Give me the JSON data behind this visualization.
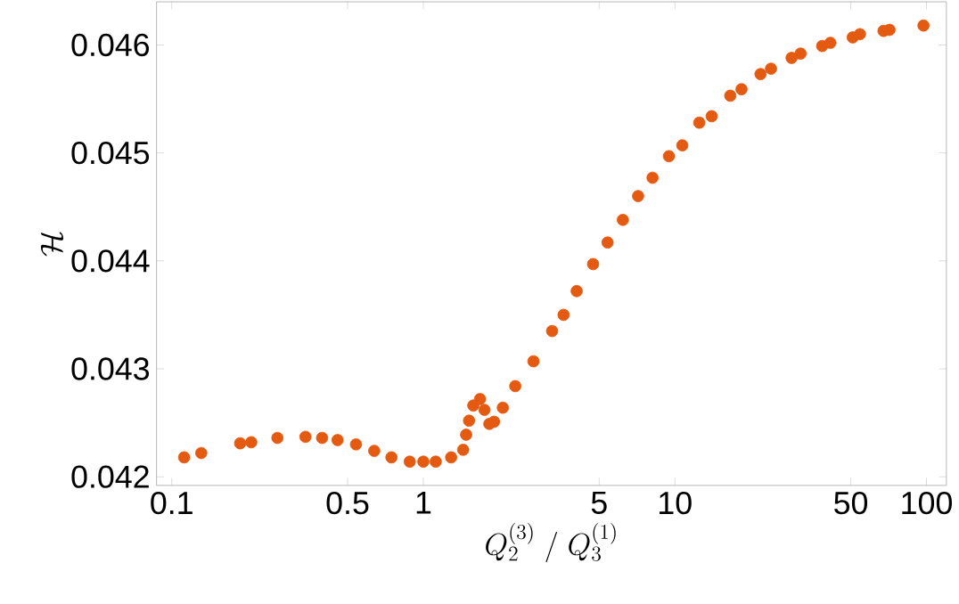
{
  "chart_data": {
    "type": "scatter",
    "xlabel": "Q_2^{(3)}\\ /\\ Q_3^{(1)}",
    "ylabel": "\\mathcal{H}",
    "log": "x",
    "xlim": [
      0.087,
      120
    ],
    "ylim": [
      0.04192,
      0.0464
    ],
    "xticks": [
      0.1,
      0.5,
      1,
      5,
      10,
      50,
      100
    ],
    "yticks": [
      0.042,
      0.043,
      0.044,
      0.045,
      0.046
    ],
    "series": [
      {
        "color": "#e35a10",
        "x": [
          0.112,
          0.131,
          0.187,
          0.207,
          0.263,
          0.34,
          0.396,
          0.456,
          0.54,
          0.638,
          0.747,
          0.883,
          1.0,
          1.12,
          1.29,
          1.44,
          1.48,
          1.52,
          1.58,
          1.68,
          1.75,
          1.83,
          1.91,
          2.07,
          2.32,
          2.74,
          3.25,
          3.61,
          4.07,
          4.73,
          5.4,
          6.21,
          7.14,
          8.15,
          9.47,
          10.7,
          12.5,
          14.0,
          16.6,
          18.4,
          21.9,
          24.1,
          29.1,
          31.6,
          38.5,
          41.5,
          50.9,
          54.4,
          67.5,
          71.3,
          97.3
        ],
        "values": [
          0.04218,
          0.04222,
          0.04231,
          0.04232,
          0.04236,
          0.04237,
          0.04236,
          0.04234,
          0.0423,
          0.04224,
          0.04218,
          0.04214,
          0.04214,
          0.04214,
          0.04218,
          0.04225,
          0.04239,
          0.04252,
          0.04266,
          0.04272,
          0.04262,
          0.04249,
          0.04251,
          0.04264,
          0.04284,
          0.04307,
          0.04335,
          0.0435,
          0.04372,
          0.04397,
          0.04417,
          0.04438,
          0.0446,
          0.04477,
          0.04497,
          0.04507,
          0.04528,
          0.04534,
          0.04553,
          0.04559,
          0.04573,
          0.04578,
          0.04588,
          0.04592,
          0.04599,
          0.04602,
          0.04607,
          0.0461,
          0.04613,
          0.04614,
          0.04618
        ]
      }
    ]
  }
}
